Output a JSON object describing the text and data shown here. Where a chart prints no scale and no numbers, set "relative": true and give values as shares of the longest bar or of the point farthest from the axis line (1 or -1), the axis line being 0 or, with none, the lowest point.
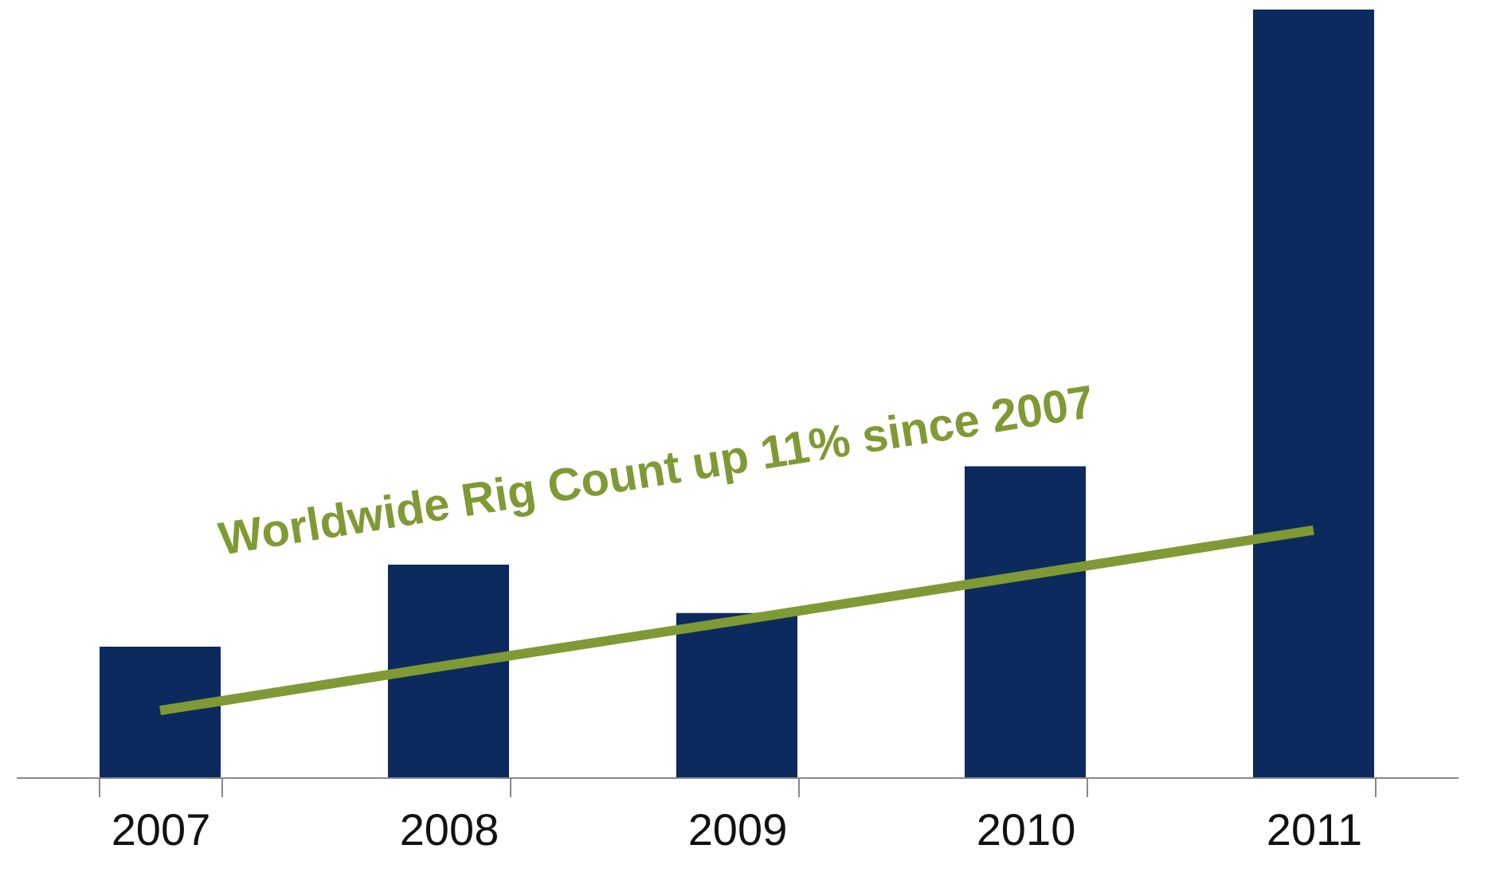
{
  "chart_data": {
    "type": "bar",
    "relative": true,
    "categories": [
      "2007",
      "2008",
      "2009",
      "2010",
      "2011"
    ],
    "series": [
      {
        "color": "#0d2a5e",
        "values": [
          0.17,
          0.277,
          0.214,
          0.405,
          1.0
        ]
      },
      {
        "type": "line",
        "color": "#7f9a35",
        "values": [
          0.087,
          0.146,
          0.204,
          0.263,
          0.322
        ]
      }
    ],
    "annotations": [
      "Worldwide Rig Count up 11% since 2007"
    ]
  }
}
